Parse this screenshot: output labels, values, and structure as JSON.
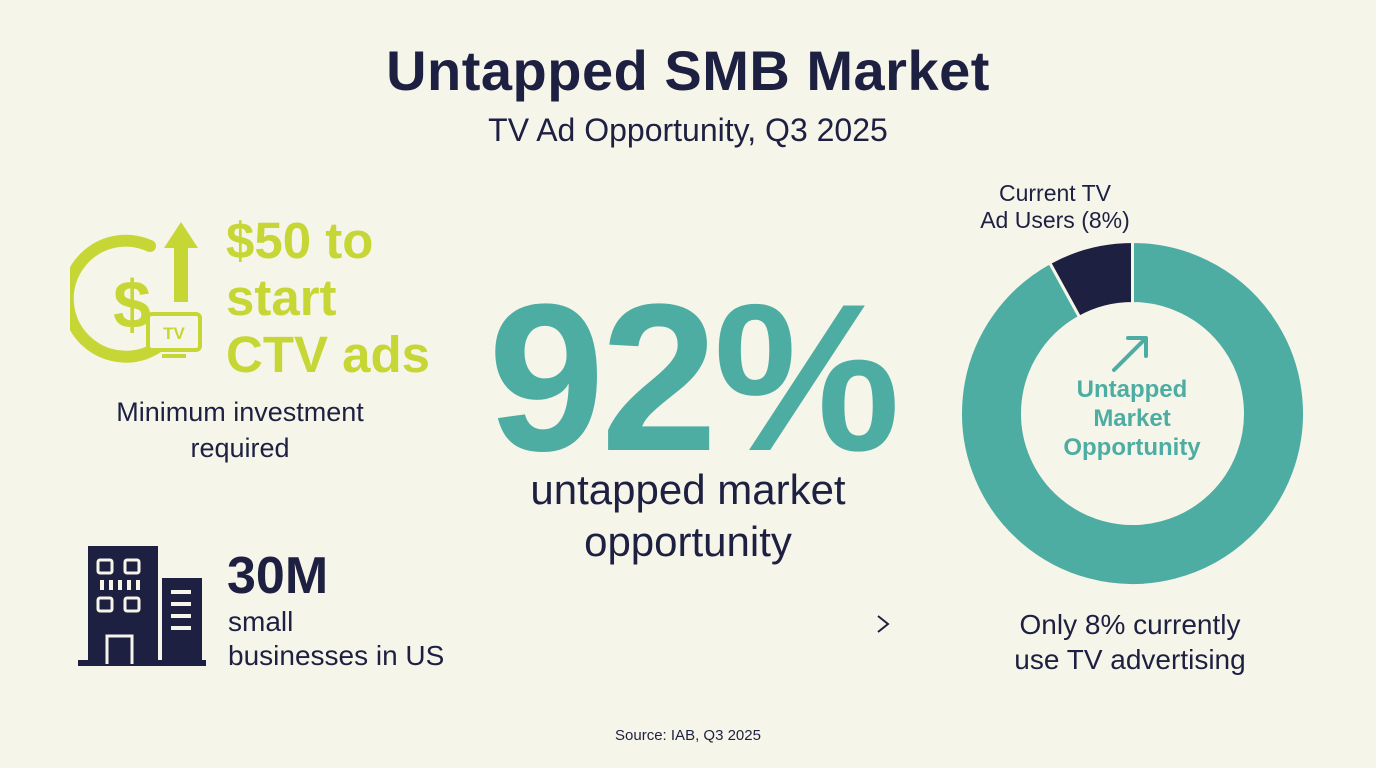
{
  "header": {
    "title": "Untapped SMB Market",
    "subtitle": "TV Ad Opportunity, Q3 2025"
  },
  "cost": {
    "headline_line1": "$50 to",
    "headline_line2": "start",
    "headline_line3": "CTV ads",
    "caption_line1": "Minimum investment",
    "caption_line2": "required",
    "icon": "dollar-growth-tv-icon",
    "icon_tv_label": "TV",
    "color": "#c6d635"
  },
  "businesses": {
    "value": "30M",
    "caption_line1": "small",
    "caption_line2": "businesses in US",
    "icon": "office-building-icon"
  },
  "highlight": {
    "value": "92%",
    "caption_line1": "untapped market",
    "caption_line2": "opportunity",
    "color": "#4eada3"
  },
  "donut": {
    "label_line1": "Current TV",
    "label_line2": "Ad Users (8%)",
    "center_line1": "Untapped",
    "center_line2": "Market",
    "center_line3": "Opportunity",
    "caption_line1": "Only 8% currently",
    "caption_line2": "use TV advertising"
  },
  "chart_data": {
    "type": "pie",
    "categories": [
      "Current TV Ad Users (8%)",
      "Untapped Market Opportunity"
    ],
    "values": [
      8,
      92
    ],
    "colors": [
      "#1e2042",
      "#4eada3"
    ],
    "style": "donut"
  },
  "footer": {
    "source": "Source: IAB, Q3 2025"
  }
}
